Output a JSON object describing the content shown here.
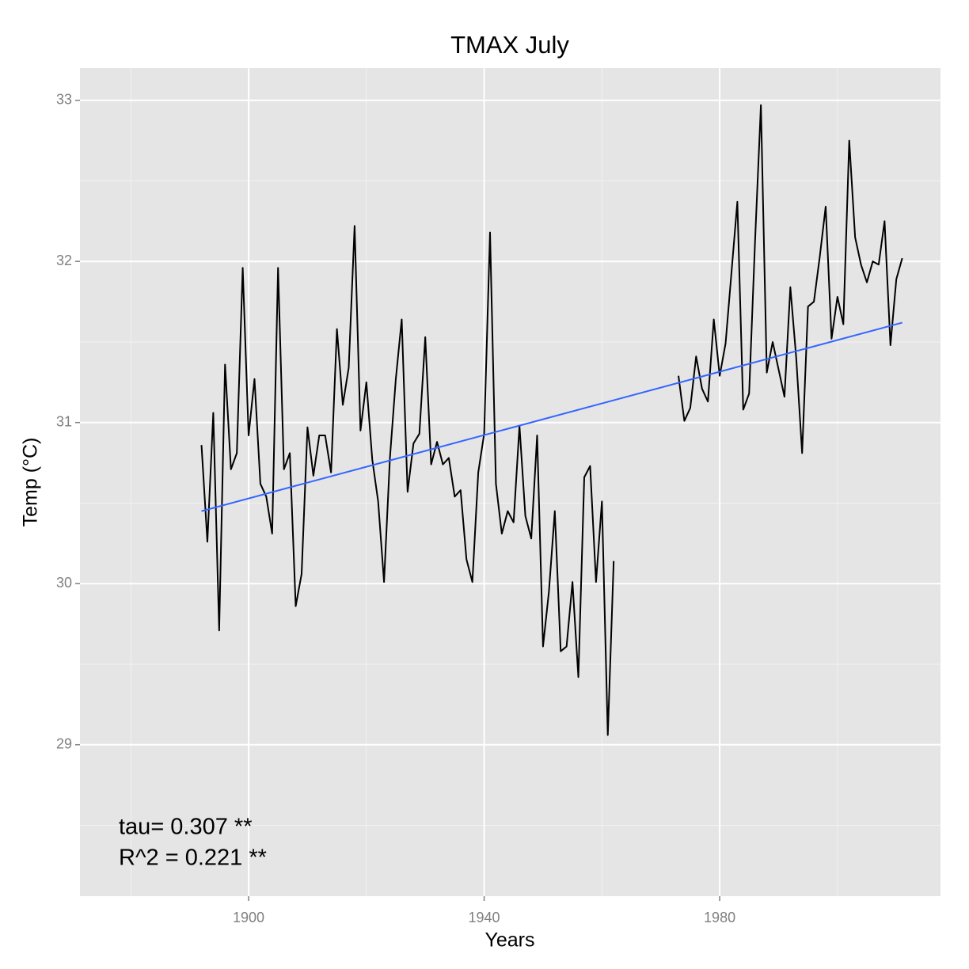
{
  "chart_data": {
    "type": "line",
    "title": "TMAX July",
    "xlabel": "Years",
    "ylabel": "Temp (°C)",
    "x": [
      1892,
      1893,
      1894,
      1895,
      1896,
      1897,
      1898,
      1899,
      1900,
      1901,
      1902,
      1903,
      1904,
      1905,
      1906,
      1907,
      1908,
      1909,
      1910,
      1911,
      1912,
      1913,
      1914,
      1915,
      1916,
      1917,
      1918,
      1919,
      1920,
      1921,
      1922,
      1923,
      1924,
      1925,
      1926,
      1927,
      1928,
      1929,
      1930,
      1931,
      1932,
      1933,
      1934,
      1935,
      1936,
      1937,
      1938,
      1939,
      1940,
      1941,
      1942,
      1943,
      1944,
      1945,
      1946,
      1947,
      1948,
      1949,
      1950,
      1951,
      1952,
      1953,
      1954,
      1955,
      1956,
      1957,
      1958,
      1959,
      1960,
      1961,
      1962,
      1963,
      1964,
      1965,
      1966,
      1967,
      1968,
      1969,
      1970,
      1971,
      1972,
      1973,
      1974,
      1975,
      1976,
      1977,
      1978,
      1979,
      1980,
      1981,
      1982,
      1983,
      1984,
      1985,
      1986,
      1987,
      1988,
      1989,
      1990,
      1991,
      1992,
      1993,
      1994,
      1995,
      1996,
      1997,
      1998,
      1999,
      2000,
      2001,
      2002,
      2003,
      2004,
      2005,
      2006,
      2007,
      2008,
      2009,
      2010,
      2011
    ],
    "series": [
      {
        "color": "#000000",
        "values": [
          30.86,
          30.26,
          31.06,
          29.71,
          31.36,
          30.71,
          30.81,
          31.96,
          30.92,
          31.27,
          30.62,
          30.54,
          30.31,
          31.96,
          30.71,
          30.81,
          29.86,
          30.06,
          30.97,
          30.67,
          30.92,
          30.92,
          30.69,
          31.58,
          31.11,
          31.34,
          32.22,
          30.95,
          31.25,
          30.77,
          30.51,
          30.01,
          30.78,
          31.27,
          31.64,
          30.57,
          30.87,
          30.93,
          31.53,
          30.74,
          30.88,
          30.74,
          30.78,
          30.54,
          30.58,
          30.15,
          30.01,
          30.69,
          30.93,
          32.18,
          30.62,
          30.31,
          30.45,
          30.38,
          30.98,
          30.42,
          30.28,
          30.92,
          29.61,
          29.95,
          30.45,
          29.58,
          29.61,
          30.01,
          29.42,
          30.66,
          30.73,
          30.01,
          30.51,
          29.06,
          30.14,
          null,
          null,
          null,
          null,
          null,
          null,
          null,
          null,
          null,
          null,
          31.29,
          31.01,
          31.09,
          31.41,
          31.21,
          31.13,
          31.64,
          31.29,
          31.49,
          31.93,
          32.37,
          31.08,
          31.18,
          32.12,
          32.97,
          31.31,
          31.5,
          31.33,
          31.16,
          31.84,
          31.4,
          30.81,
          31.72,
          31.75,
          32.03,
          32.34,
          31.52,
          31.78,
          31.61,
          32.75,
          32.15,
          31.98,
          31.87,
          32.0,
          31.98,
          32.25,
          31.48,
          31.89,
          32.02
        ]
      }
    ],
    "trend": {
      "color": "#3366ff",
      "x": [
        1892,
        2011
      ],
      "values": [
        30.45,
        31.62
      ]
    },
    "annotations": [
      "tau= 0.307 **",
      "R^2 =  0.221 **"
    ],
    "xlim": [
      1871.36,
      2017.5
    ],
    "ylim": [
      28.06,
      33.2
    ],
    "xticks": [
      1900,
      1940,
      1980
    ],
    "yticks": [
      29,
      30,
      31,
      32,
      33
    ],
    "x_minor_ticks": [
      1880,
      1920,
      1960,
      2000
    ],
    "y_minor_ticks": [
      28.5,
      29.5,
      30.5,
      31.5,
      32.5
    ],
    "grid": true
  }
}
